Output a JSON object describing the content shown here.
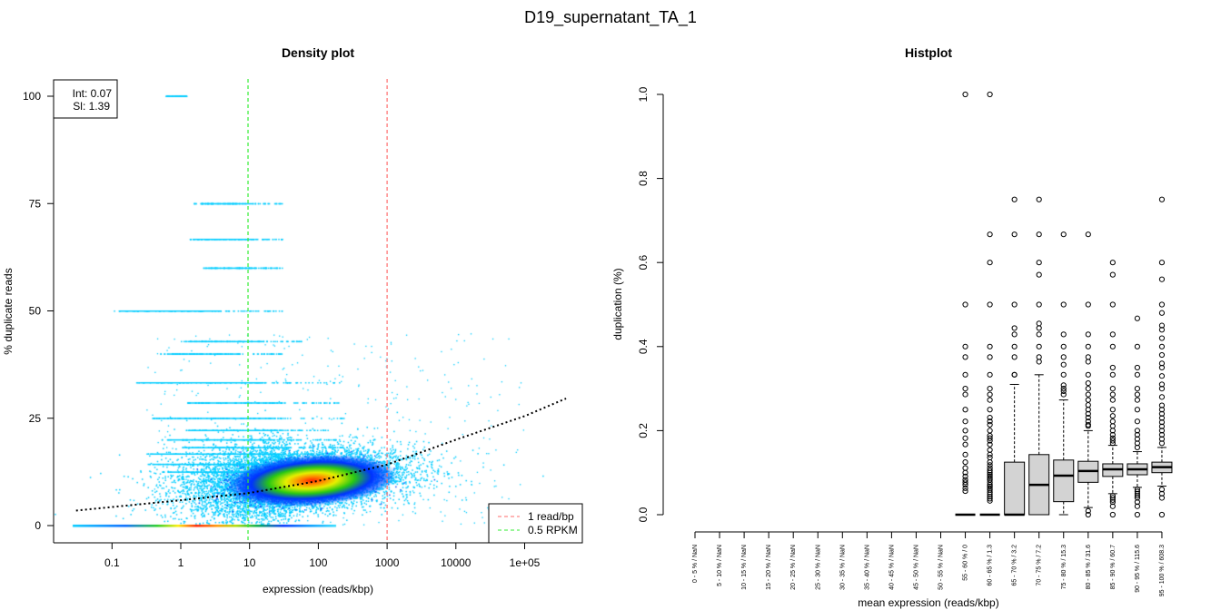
{
  "title": "D19_supernatant_TA_1",
  "chart_data": [
    {
      "type": "scatter",
      "subtype": "density",
      "title": "Density plot",
      "xlabel": "expression (reads/kbp)",
      "ylabel": "% duplicate reads",
      "xscale": "log10",
      "xlim": [
        0.02,
        500000
      ],
      "ylim": [
        0,
        100
      ],
      "x_ticks": [
        0.1,
        1,
        10,
        100,
        1000,
        10000,
        100000
      ],
      "x_tick_labels": [
        "0.1",
        "1",
        "10",
        "100",
        "1000",
        "10000",
        "1e+05"
      ],
      "y_ticks": [
        0,
        25,
        50,
        75,
        100
      ],
      "y_tick_labels": [
        "0",
        "25",
        "50",
        "75",
        "100"
      ],
      "density_peak": {
        "x": 80,
        "y": 10.5
      },
      "fit_label": {
        "int": "Int: 0.07",
        "sl": "Sl: 1.39"
      },
      "fit_curve": {
        "x": [
          0.03,
          1,
          10,
          100,
          1000,
          10000,
          100000,
          400000
        ],
        "y": [
          3.5,
          5.9,
          7.6,
          10.4,
          14.2,
          20.0,
          25.5,
          29.6
        ]
      },
      "vlines": [
        {
          "x": 1000,
          "label": "1 read/bp",
          "color": "#ff6b6b"
        },
        {
          "x": 9.5,
          "label": "0.5 RPKM",
          "color": "#33ee33"
        }
      ],
      "legend_position": "bottom-right",
      "stat_box_position": "top-left"
    },
    {
      "type": "box",
      "title": "Histplot",
      "xlabel": "mean expression (reads/kbp)",
      "ylabel": "duplication (%)",
      "ylim": [
        0,
        1
      ],
      "y_ticks": [
        0.0,
        0.2,
        0.4,
        0.6,
        0.8,
        1.0
      ],
      "y_tick_labels": [
        "0.0",
        "0.2",
        "0.4",
        "0.6",
        "0.8",
        "1.0"
      ],
      "categories": [
        "0 - 5 % / NaN",
        "5 - 10 % / NaN",
        "10 - 15 % / NaN",
        "15 - 20 % / NaN",
        "20 - 25 % / NaN",
        "25 - 30 % / NaN",
        "30 - 35 % / NaN",
        "35 - 40 % / NaN",
        "40 - 45 % / NaN",
        "45 - 50 % / NaN",
        "50 - 55 % / NaN",
        "55 - 60 % / 0",
        "60 - 65 % / 1.3",
        "65 - 70 % / 3.2",
        "70 - 75 % / 7.2",
        "75 - 80 % / 15.3",
        "80 - 85 % / 31.6",
        "85 - 90 % / 60.7",
        "90 - 95 % / 115.6",
        "95 - 100 % / 608.3"
      ],
      "boxes": [
        null,
        null,
        null,
        null,
        null,
        null,
        null,
        null,
        null,
        null,
        null,
        {
          "min": 0,
          "q1": 0,
          "median": 0,
          "q3": 0,
          "max": 0,
          "outliers": [
            1.0,
            0.5,
            0.4,
            0.375,
            0.333,
            0.3,
            0.286,
            0.25,
            0.222,
            0.2,
            0.182,
            0.167,
            0.143,
            0.125,
            0.111,
            0.1,
            0.091,
            0.083,
            0.077,
            0.071,
            0.063,
            0.056
          ]
        },
        {
          "min": 0,
          "q1": 0,
          "median": 0,
          "q3": 0,
          "max": 0,
          "outliers": [
            1.0,
            0.667,
            0.6,
            0.5,
            0.4,
            0.375,
            0.333,
            0.3,
            0.286,
            0.273,
            0.25,
            0.231,
            0.222,
            0.214,
            0.2,
            0.188,
            0.182,
            0.176,
            0.167,
            0.154,
            0.143,
            0.136,
            0.125,
            0.118,
            0.111,
            0.105,
            0.1,
            0.095,
            0.091,
            0.087,
            0.083,
            0.077,
            0.071,
            0.067,
            0.063,
            0.059,
            0.053,
            0.048,
            0.043,
            0.038,
            0.033
          ]
        },
        {
          "min": 0,
          "q1": 0,
          "median": 0,
          "q3": 0.125,
          "max": 0.31,
          "outliers": [
            0.75,
            0.667,
            0.5,
            0.444,
            0.429,
            0.4,
            0.375,
            0.333,
            0.333
          ]
        },
        {
          "min": 0,
          "q1": 0,
          "median": 0.071,
          "q3": 0.143,
          "max": 0.333,
          "outliers": [
            0.75,
            0.667,
            0.6,
            0.571,
            0.5,
            0.455,
            0.444,
            0.429,
            0.4,
            0.375,
            0.364
          ]
        },
        {
          "min": 0,
          "q1": 0.031,
          "median": 0.093,
          "q3": 0.13,
          "max": 0.273,
          "outliers": [
            0.667,
            0.5,
            0.429,
            0.4,
            0.375,
            0.357,
            0.333,
            0.308,
            0.3,
            0.294,
            0.286
          ]
        },
        {
          "min": 0.017,
          "q1": 0.077,
          "median": 0.104,
          "q3": 0.127,
          "max": 0.2,
          "outliers": [
            0.667,
            0.5,
            0.429,
            0.4,
            0.375,
            0.364,
            0.333,
            0.313,
            0.3,
            0.286,
            0.273,
            0.261,
            0.25,
            0.24,
            0.231,
            0.222,
            0.214,
            0.211,
            0.0,
            0.009
          ]
        },
        {
          "min": 0.05,
          "q1": 0.091,
          "median": 0.108,
          "q3": 0.121,
          "max": 0.165,
          "outliers": [
            0.6,
            0.571,
            0.5,
            0.429,
            0.4,
            0.35,
            0.333,
            0.3,
            0.286,
            0.273,
            0.25,
            0.235,
            0.222,
            0.211,
            0.2,
            0.19,
            0.182,
            0.176,
            0.17,
            0.045,
            0.04,
            0.035,
            0.03,
            0.02,
            0.0
          ]
        },
        {
          "min": 0.065,
          "q1": 0.095,
          "median": 0.108,
          "q3": 0.121,
          "max": 0.15,
          "outliers": [
            0.467,
            0.4,
            0.35,
            0.333,
            0.3,
            0.286,
            0.273,
            0.25,
            0.222,
            0.2,
            0.19,
            0.18,
            0.17,
            0.16,
            0.06,
            0.055,
            0.05,
            0.045,
            0.04,
            0.03,
            0.02,
            0.0
          ]
        },
        {
          "min": 0.068,
          "q1": 0.1,
          "median": 0.113,
          "q3": 0.125,
          "max": 0.16,
          "outliers": [
            0.75,
            0.6,
            0.56,
            0.5,
            0.48,
            0.45,
            0.44,
            0.42,
            0.4,
            0.38,
            0.36,
            0.35,
            0.33,
            0.31,
            0.3,
            0.28,
            0.26,
            0.25,
            0.24,
            0.23,
            0.22,
            0.21,
            0.2,
            0.19,
            0.18,
            0.17,
            0.06,
            0.05,
            0.04,
            0.0
          ]
        }
      ]
    }
  ]
}
